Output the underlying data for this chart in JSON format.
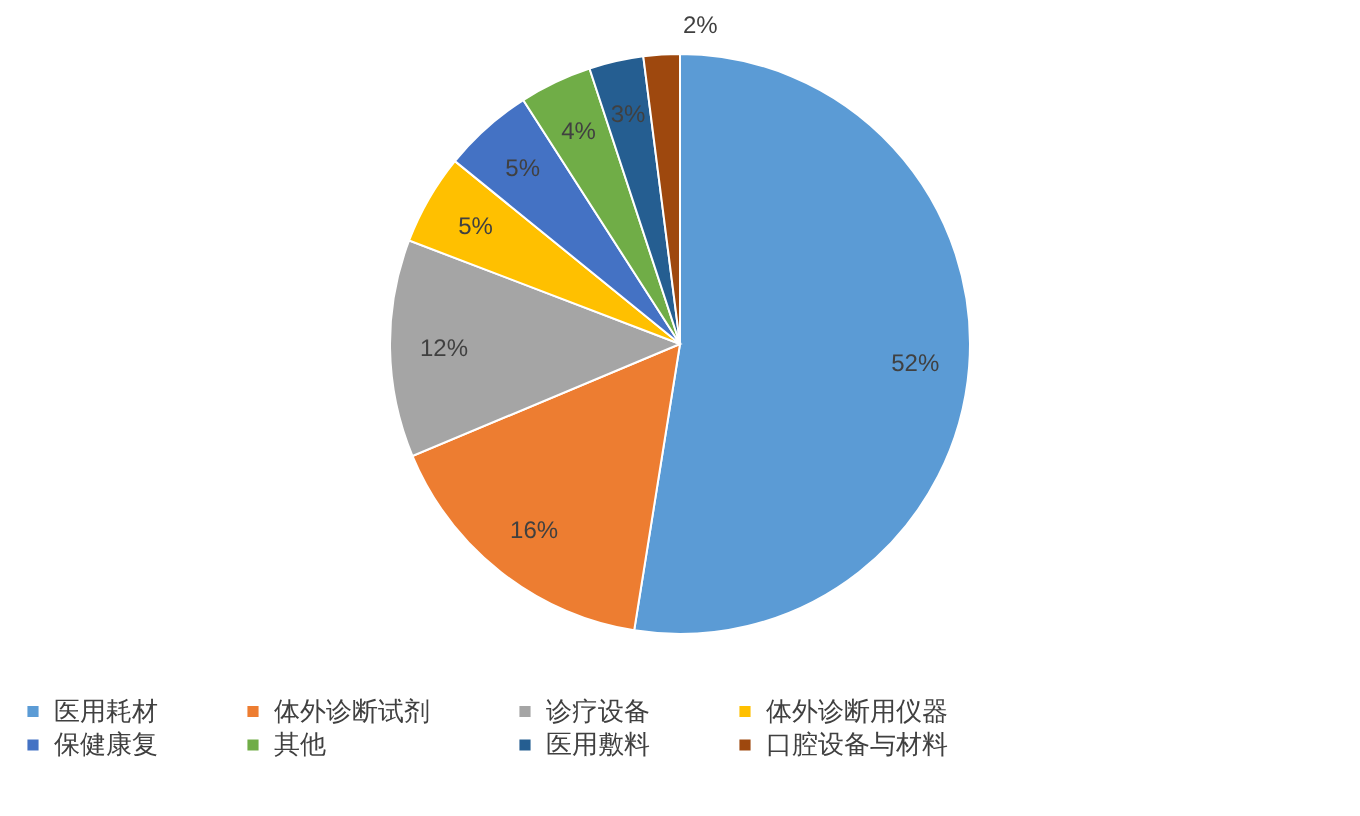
{
  "chart_data": {
    "type": "pie",
    "categories": [
      "医用耗材",
      "体外诊断试剂",
      "诊疗设备",
      "体外诊断用仪器",
      "保健康复",
      "其他",
      "医用敷料",
      "口腔设备与材料"
    ],
    "values": [
      52,
      16,
      12,
      5,
      5,
      4,
      3,
      2
    ],
    "colors": [
      "#5b9bd5",
      "#ed7d31",
      "#a5a5a5",
      "#ffc000",
      "#4472c4",
      "#70ad47",
      "#255e91",
      "#9e480e"
    ],
    "value_labels": [
      "52%",
      "16%",
      "12%",
      "5%",
      "5%",
      "4%",
      "3%",
      "2%"
    ],
    "legend": "bottom"
  }
}
